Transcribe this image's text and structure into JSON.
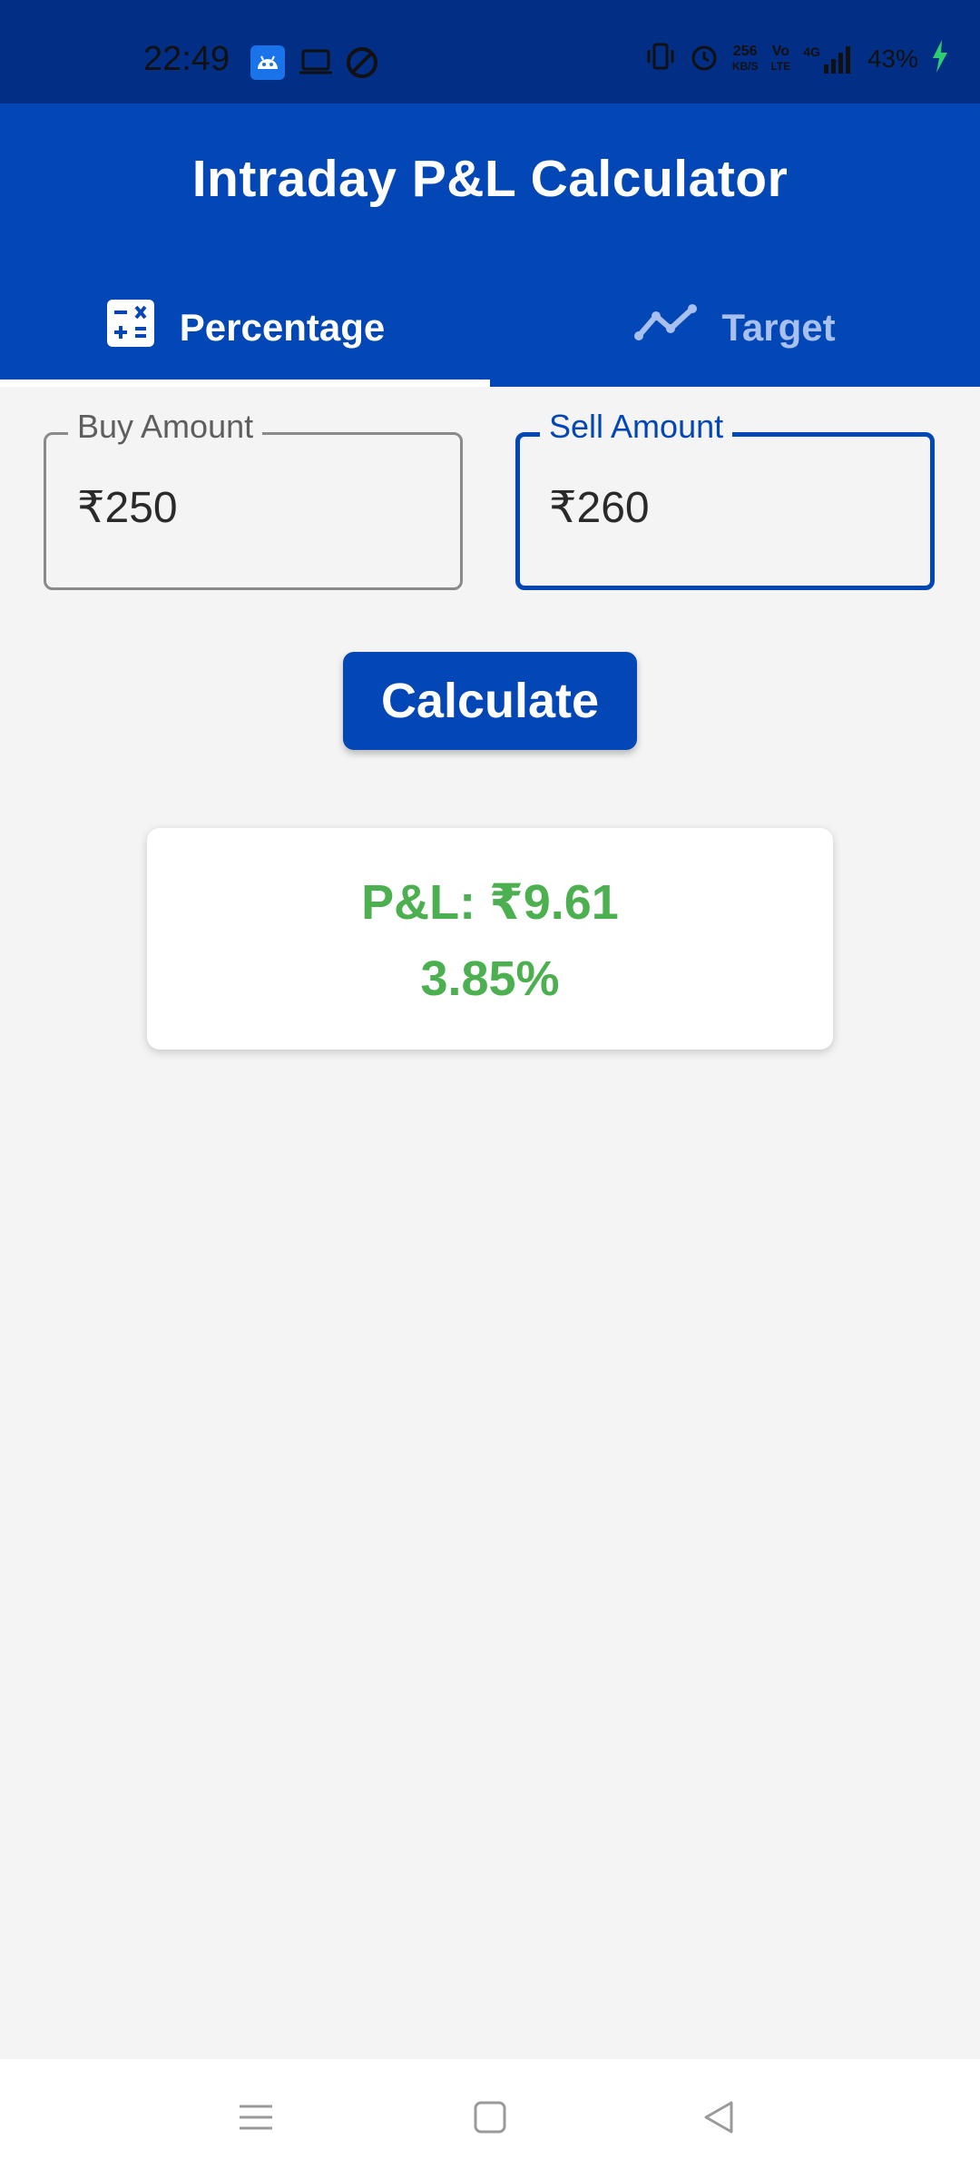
{
  "status_bar": {
    "time": "22:49",
    "speed_value": "256",
    "speed_unit": "KB/S",
    "volte_top": "Vo",
    "volte_bottom": "LTE",
    "network": "4G",
    "battery": "43%",
    "icons": [
      "android-icon",
      "laptop-icon",
      "dnd-icon",
      "vibrate-icon",
      "alarm-icon",
      "signal-icon",
      "charging-icon"
    ]
  },
  "app": {
    "title": "Intraday P&L Calculator"
  },
  "tabs": [
    {
      "label": "Percentage",
      "icon": "calculator-icon",
      "active": true
    },
    {
      "label": "Target",
      "icon": "trend-line-icon",
      "active": false
    }
  ],
  "form": {
    "buy": {
      "label": "Buy Amount",
      "value": "₹250"
    },
    "sell": {
      "label": "Sell Amount",
      "value": "₹260"
    }
  },
  "calculate_label": "Calculate",
  "result": {
    "pl": "P&L: ₹9.61",
    "percent": "3.85%",
    "color": "#4caf50"
  },
  "theme": {
    "primary": "#0347b6",
    "status_bar": "#032e85",
    "background": "#f4f4f4"
  },
  "nav_icons": [
    "menu-icon",
    "home-icon",
    "back-icon"
  ]
}
